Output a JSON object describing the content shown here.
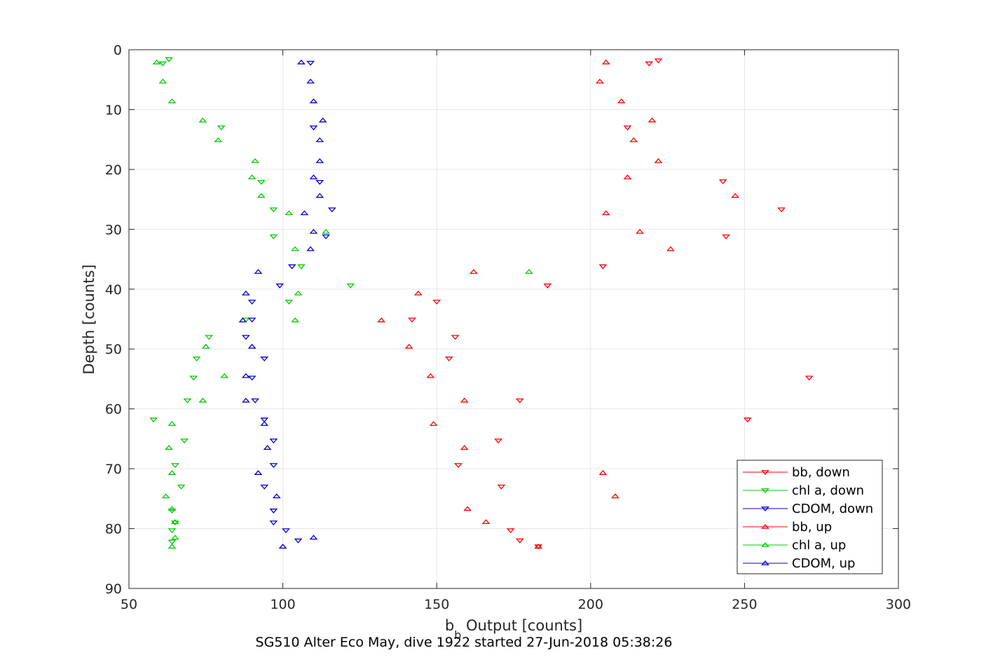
{
  "chart_data": {
    "type": "scatter",
    "xlabel": "b",
    "xlabel_subscript": "b",
    "xlabel_suffix": " Output [counts]",
    "ylabel": "Depth [counts]",
    "caption": "SG510 Alter Eco May, dive 1922 started 27-Jun-2018 05:38:26",
    "xlim": [
      50,
      300
    ],
    "ylim": [
      0,
      90
    ],
    "y_reversed": true,
    "grid": true,
    "legend_position": "bottom-right",
    "x_ticks": [
      50,
      100,
      150,
      200,
      250,
      300
    ],
    "y_ticks": [
      0,
      10,
      20,
      30,
      40,
      50,
      60,
      70,
      80,
      90
    ],
    "series": [
      {
        "name": "bb, down",
        "color": "#ff0000",
        "marker": "triangle-down",
        "points": [
          [
            222,
            1.8
          ],
          [
            219,
            2.3
          ],
          [
            212,
            13
          ],
          [
            243,
            22
          ],
          [
            262,
            26.7
          ],
          [
            244,
            31.2
          ],
          [
            204,
            36.2
          ],
          [
            186,
            39.4
          ],
          [
            150,
            42.1
          ],
          [
            142,
            45.1
          ],
          [
            156,
            48
          ],
          [
            154,
            51.6
          ],
          [
            271,
            54.8
          ],
          [
            177,
            58.6
          ],
          [
            251,
            61.8
          ],
          [
            170,
            65.3
          ],
          [
            157,
            69.4
          ],
          [
            171,
            73
          ],
          [
            174,
            80.3
          ],
          [
            177,
            82
          ],
          [
            183,
            83
          ]
        ]
      },
      {
        "name": "chl a, down",
        "color": "#00cc00",
        "marker": "triangle-down",
        "points": [
          [
            63,
            1.6
          ],
          [
            61,
            2.3
          ],
          [
            80,
            13
          ],
          [
            93,
            22.1
          ],
          [
            97,
            26.7
          ],
          [
            97,
            31.2
          ],
          [
            106,
            36.2
          ],
          [
            122,
            39.4
          ],
          [
            102,
            42.1
          ],
          [
            88,
            45.1
          ],
          [
            76,
            48
          ],
          [
            72,
            51.6
          ],
          [
            71,
            54.8
          ],
          [
            69,
            58.6
          ],
          [
            58,
            61.8
          ],
          [
            68,
            65.3
          ],
          [
            65,
            69.4
          ],
          [
            67,
            73
          ],
          [
            64,
            77
          ],
          [
            65,
            79
          ],
          [
            64,
            80.3
          ],
          [
            64,
            82.2
          ]
        ]
      },
      {
        "name": "CDOM, down",
        "color": "#0000cc",
        "marker": "triangle-down",
        "points": [
          [
            109,
            2.2
          ],
          [
            110,
            13
          ],
          [
            112,
            22.1
          ],
          [
            116,
            26.7
          ],
          [
            114,
            31.2
          ],
          [
            103,
            36.2
          ],
          [
            99,
            39.4
          ],
          [
            90,
            42.1
          ],
          [
            90,
            45.1
          ],
          [
            88,
            48
          ],
          [
            94,
            51.6
          ],
          [
            90,
            54.8
          ],
          [
            91,
            58.6
          ],
          [
            94,
            61.8
          ],
          [
            97,
            65.3
          ],
          [
            97,
            69.4
          ],
          [
            94,
            73
          ],
          [
            97,
            77
          ],
          [
            97,
            79
          ],
          [
            101,
            80.3
          ],
          [
            105,
            82
          ]
        ]
      },
      {
        "name": "bb, up",
        "color": "#ff0000",
        "marker": "triangle-up",
        "points": [
          [
            205,
            2.1
          ],
          [
            203,
            5.3
          ],
          [
            210,
            8.6
          ],
          [
            220,
            11.8
          ],
          [
            214,
            15.1
          ],
          [
            222,
            18.6
          ],
          [
            212,
            21.3
          ],
          [
            247,
            24.4
          ],
          [
            205,
            27.3
          ],
          [
            216,
            30.4
          ],
          [
            226,
            33.3
          ],
          [
            162,
            37.1
          ],
          [
            144,
            40.7
          ],
          [
            132,
            45.2
          ],
          [
            141,
            49.6
          ],
          [
            148,
            54.5
          ],
          [
            159,
            58.6
          ],
          [
            149,
            62.5
          ],
          [
            159,
            66.5
          ],
          [
            204,
            70.7
          ],
          [
            208,
            74.6
          ],
          [
            160,
            76.7
          ],
          [
            166,
            78.9
          ],
          [
            183,
            83
          ]
        ]
      },
      {
        "name": "chl a, up",
        "color": "#00cc00",
        "marker": "triangle-up",
        "points": [
          [
            59,
            2.1
          ],
          [
            61,
            5.3
          ],
          [
            64,
            8.6
          ],
          [
            74,
            11.8
          ],
          [
            79,
            15.1
          ],
          [
            91,
            18.6
          ],
          [
            90,
            21.3
          ],
          [
            93,
            24.4
          ],
          [
            102,
            27.3
          ],
          [
            114,
            30.4
          ],
          [
            104,
            33.3
          ],
          [
            180,
            37.1
          ],
          [
            105,
            40.7
          ],
          [
            104,
            45.2
          ],
          [
            75,
            49.6
          ],
          [
            81,
            54.5
          ],
          [
            74,
            58.6
          ],
          [
            64,
            62.5
          ],
          [
            63,
            66.5
          ],
          [
            64,
            70.7
          ],
          [
            62,
            74.6
          ],
          [
            64,
            76.7
          ],
          [
            65,
            78.9
          ],
          [
            65,
            81.5
          ],
          [
            64,
            83
          ]
        ]
      },
      {
        "name": "CDOM, up",
        "color": "#0000cc",
        "marker": "triangle-up",
        "points": [
          [
            106,
            2.1
          ],
          [
            109,
            5.3
          ],
          [
            110,
            8.6
          ],
          [
            113,
            11.8
          ],
          [
            112,
            15.1
          ],
          [
            112,
            18.6
          ],
          [
            110,
            21.3
          ],
          [
            112,
            24.4
          ],
          [
            107,
            27.3
          ],
          [
            110,
            30.4
          ],
          [
            109,
            33.3
          ],
          [
            92,
            37.1
          ],
          [
            88,
            40.7
          ],
          [
            87,
            45.2
          ],
          [
            90,
            49.6
          ],
          [
            88,
            54.5
          ],
          [
            88,
            58.6
          ],
          [
            94,
            62.5
          ],
          [
            95,
            66.5
          ],
          [
            92,
            70.7
          ],
          [
            98,
            74.6
          ],
          [
            110,
            81.5
          ],
          [
            100,
            83
          ]
        ]
      }
    ]
  }
}
